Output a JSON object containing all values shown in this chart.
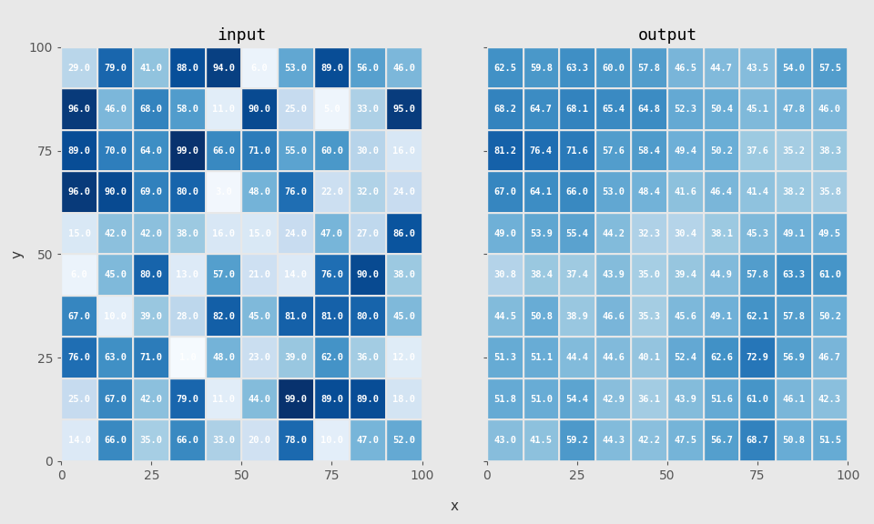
{
  "input": [
    [
      29.0,
      79.0,
      41.0,
      88.0,
      94.0,
      6.0,
      53.0,
      89.0,
      56.0,
      46.0
    ],
    [
      96.0,
      46.0,
      68.0,
      58.0,
      11.0,
      90.0,
      25.0,
      5.0,
      33.0,
      95.0
    ],
    [
      89.0,
      70.0,
      64.0,
      99.0,
      66.0,
      71.0,
      55.0,
      60.0,
      30.0,
      16.0
    ],
    [
      96.0,
      90.0,
      69.0,
      80.0,
      3.0,
      48.0,
      76.0,
      22.0,
      32.0,
      24.0
    ],
    [
      15.0,
      42.0,
      42.0,
      38.0,
      16.0,
      15.0,
      24.0,
      47.0,
      27.0,
      86.0
    ],
    [
      6.0,
      45.0,
      80.0,
      13.0,
      57.0,
      21.0,
      14.0,
      76.0,
      90.0,
      38.0
    ],
    [
      67.0,
      10.0,
      39.0,
      28.0,
      82.0,
      45.0,
      81.0,
      81.0,
      80.0,
      45.0
    ],
    [
      76.0,
      63.0,
      71.0,
      1.0,
      48.0,
      23.0,
      39.0,
      62.0,
      36.0,
      12.0
    ],
    [
      25.0,
      67.0,
      42.0,
      79.0,
      11.0,
      44.0,
      99.0,
      89.0,
      89.0,
      18.0
    ],
    [
      14.0,
      66.0,
      35.0,
      66.0,
      33.0,
      20.0,
      78.0,
      10.0,
      47.0,
      52.0
    ]
  ],
  "output": [
    [
      62.5,
      59.8,
      63.3,
      60.0,
      57.8,
      46.5,
      44.7,
      43.5,
      54.0,
      57.5
    ],
    [
      68.2,
      64.7,
      68.1,
      65.4,
      64.8,
      52.3,
      50.4,
      45.1,
      47.8,
      46.0
    ],
    [
      81.2,
      76.4,
      71.6,
      57.6,
      58.4,
      49.4,
      50.2,
      37.6,
      35.2,
      38.3
    ],
    [
      67.0,
      64.1,
      66.0,
      53.0,
      48.4,
      41.6,
      46.4,
      41.4,
      38.2,
      35.8
    ],
    [
      49.0,
      53.9,
      55.4,
      44.2,
      32.3,
      30.4,
      38.1,
      45.3,
      49.1,
      49.5
    ],
    [
      30.8,
      38.4,
      37.4,
      43.9,
      35.0,
      39.4,
      44.9,
      57.8,
      63.3,
      61.0
    ],
    [
      44.5,
      50.8,
      38.9,
      46.6,
      35.3,
      45.6,
      49.1,
      62.1,
      57.8,
      50.2
    ],
    [
      51.3,
      51.1,
      44.4,
      44.6,
      40.1,
      52.4,
      62.6,
      72.9,
      56.9,
      46.7
    ],
    [
      51.8,
      51.0,
      54.4,
      42.9,
      36.1,
      43.9,
      51.6,
      61.0,
      46.1,
      42.3
    ],
    [
      43.0,
      41.5,
      59.2,
      44.3,
      42.2,
      47.5,
      56.7,
      68.7,
      50.8,
      51.5
    ]
  ],
  "title_input": "input",
  "title_output": "output",
  "xlabel": "x",
  "ylabel": "y",
  "colormap": "Blues",
  "vmin": 0,
  "vmax": 100,
  "bg_color": "#e8e8e8",
  "text_color": "white",
  "fontsize_title": 13,
  "fontsize_cell": 7.5,
  "fontsize_label": 11,
  "fontsize_tick": 10
}
